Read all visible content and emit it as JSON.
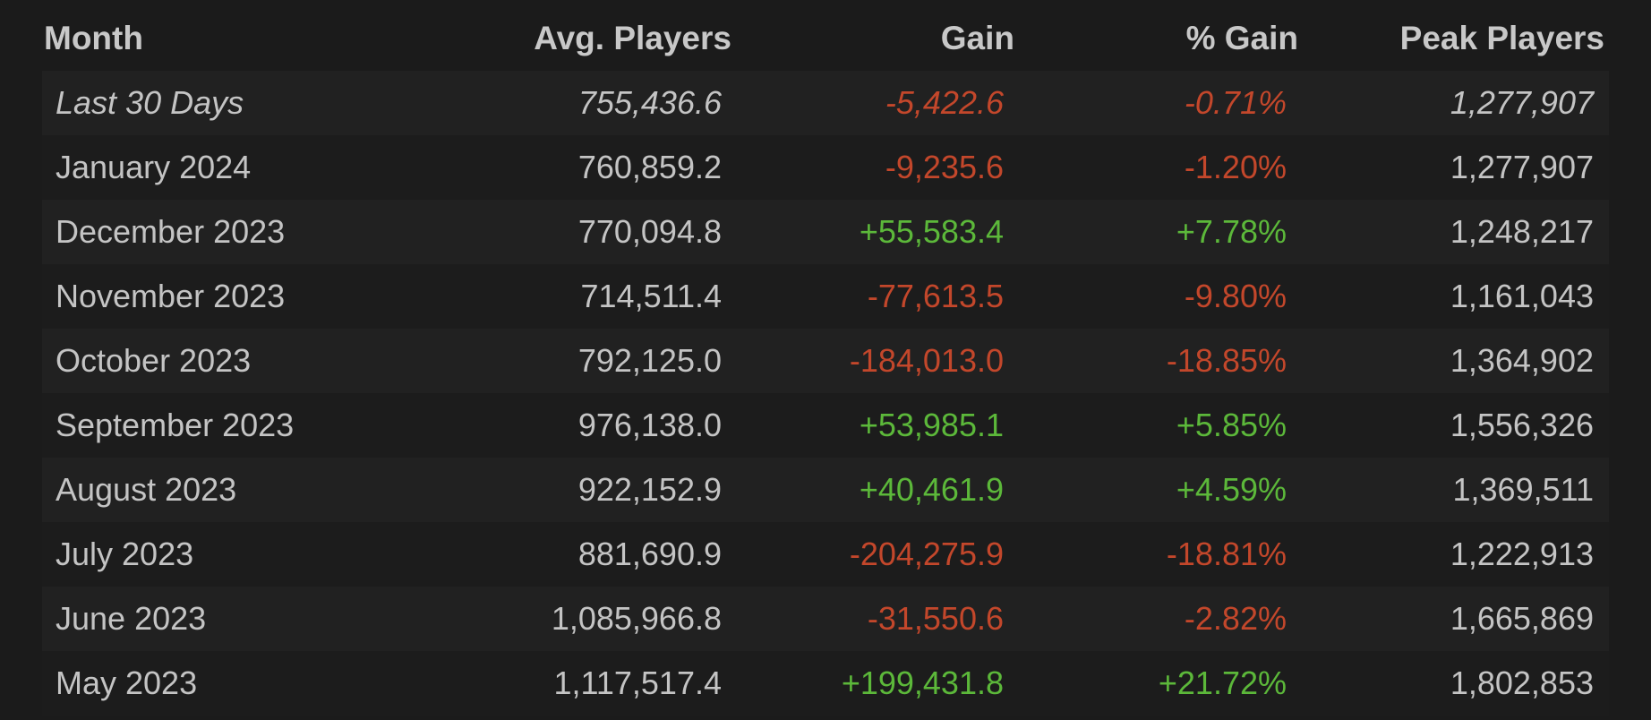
{
  "table": {
    "header": [
      "Month",
      "Avg. Players",
      "Gain",
      "% Gain",
      "Peak Players"
    ],
    "rows": [
      [
        "Last 30 Days",
        "755,436.6",
        "-5,422.6",
        "-0.71%",
        "1,277,907"
      ],
      [
        "January 2024",
        "760,859.2",
        "-9,235.6",
        "-1.20%",
        "1,277,907"
      ],
      [
        "December 2023",
        "770,094.8",
        "+55,583.4",
        "+7.78%",
        "1,248,217"
      ],
      [
        "November 2023",
        "714,511.4",
        "-77,613.5",
        "-9.80%",
        "1,161,043"
      ],
      [
        "October 2023",
        "792,125.0",
        "-184,013.0",
        "-18.85%",
        "1,364,902"
      ],
      [
        "September 2023",
        "976,138.0",
        "+53,985.1",
        "+5.85%",
        "1,556,326"
      ],
      [
        "August 2023",
        "922,152.9",
        "+40,461.9",
        "+4.59%",
        "1,369,511"
      ],
      [
        "July 2023",
        "881,690.9",
        "-204,275.9",
        "-18.81%",
        "1,222,913"
      ],
      [
        "June 2023",
        "1,085,966.8",
        "-31,550.6",
        "-2.82%",
        "1,665,869"
      ],
      [
        "May 2023",
        "1,117,517.4",
        "+199,431.8",
        "+21.72%",
        "1,802,853"
      ]
    ]
  }
}
